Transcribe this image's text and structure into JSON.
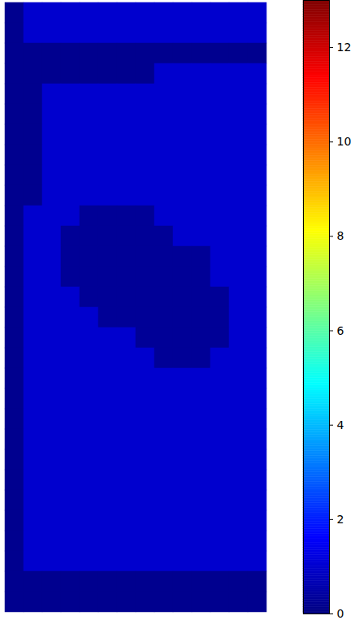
{
  "chart_data": {
    "type": "heatmap",
    "tick_labels": false,
    "color": "jet",
    "cells": [
      [
        0.2,
        1,
        1,
        1,
        1,
        1,
        1,
        1,
        1,
        1,
        1,
        1,
        1,
        1
      ],
      [
        0.2,
        1,
        1,
        1,
        1,
        1,
        1,
        1,
        1,
        1,
        1,
        1,
        1,
        1
      ],
      [
        0.2,
        0.2,
        0.2,
        0.2,
        0.2,
        0.2,
        0.2,
        0.2,
        0.2,
        0.2,
        0.2,
        0.2,
        0.2,
        0.2
      ],
      [
        0.2,
        0.2,
        0.2,
        0.2,
        0.2,
        0.2,
        0.2,
        0.2,
        1,
        1,
        1,
        1,
        1,
        1
      ],
      [
        0.2,
        0.2,
        1,
        1,
        1,
        1,
        1,
        1,
        1,
        1,
        1,
        1,
        1,
        1
      ],
      [
        0.2,
        0.2,
        1,
        1,
        1,
        1,
        1,
        1,
        1,
        1,
        1,
        1,
        1,
        1
      ],
      [
        0.2,
        0.2,
        1,
        1,
        1,
        1,
        1,
        1,
        1,
        1,
        1,
        1,
        1,
        1
      ],
      [
        0.2,
        0.2,
        1,
        1,
        1,
        1,
        1,
        1,
        1,
        1,
        1,
        1,
        1,
        1
      ],
      [
        0.2,
        0.2,
        1,
        1,
        1,
        1,
        1,
        1,
        1,
        1,
        1,
        1,
        1,
        1
      ],
      [
        0.2,
        0.2,
        1,
        1,
        1,
        1,
        1,
        1,
        1,
        1,
        1,
        1,
        1,
        1
      ],
      [
        0.2,
        1,
        1,
        1,
        0.3,
        0.3,
        0.3,
        0.3,
        1,
        1,
        1,
        1,
        1,
        1
      ],
      [
        0.2,
        1,
        1,
        0.3,
        0.3,
        0.3,
        0.3,
        0.3,
        0.3,
        1,
        1,
        1,
        1,
        1
      ],
      [
        0.2,
        1,
        1,
        0.3,
        0.3,
        0.3,
        0.3,
        0.3,
        0.3,
        0.3,
        0.3,
        1,
        1,
        1
      ],
      [
        0.2,
        1,
        1,
        0.3,
        0.3,
        0.3,
        0.3,
        0.3,
        0.3,
        0.3,
        0.3,
        1,
        1,
        1
      ],
      [
        0.2,
        1,
        1,
        1,
        0.3,
        0.3,
        0.3,
        0.3,
        0.3,
        0.3,
        0.3,
        0.3,
        1,
        1
      ],
      [
        0.2,
        1,
        1,
        1,
        1,
        0.3,
        0.3,
        0.3,
        0.3,
        0.3,
        0.3,
        0.3,
        1,
        1
      ],
      [
        0.2,
        1,
        1,
        1,
        1,
        1,
        1,
        0.3,
        0.3,
        0.3,
        0.3,
        0.3,
        1,
        1
      ],
      [
        0.2,
        1,
        1,
        1,
        1,
        1,
        1,
        1,
        0.3,
        0.3,
        0.3,
        1,
        1,
        1
      ],
      [
        0.2,
        1,
        1,
        1,
        1,
        1,
        1,
        1,
        1,
        1,
        1,
        1,
        1,
        1
      ],
      [
        0.2,
        1,
        1,
        1,
        1,
        1,
        1,
        1,
        1,
        1,
        1,
        1,
        1,
        1
      ],
      [
        0.2,
        1,
        1,
        1,
        1,
        1,
        1,
        1,
        1,
        1,
        1,
        1,
        1,
        1
      ],
      [
        0.2,
        1,
        1,
        1,
        1,
        1,
        1,
        1,
        1,
        1,
        1,
        1,
        1,
        1
      ],
      [
        0.2,
        1,
        1,
        1,
        1,
        1,
        1,
        1,
        1,
        1,
        1,
        1,
        1,
        1
      ],
      [
        0.2,
        1,
        1,
        1,
        1,
        1,
        1,
        1,
        1,
        1,
        1,
        1,
        1,
        1
      ],
      [
        0.2,
        1,
        1,
        1,
        1,
        1,
        1,
        1,
        1,
        1,
        1,
        1,
        1,
        1
      ],
      [
        0.2,
        1,
        1,
        1,
        1,
        1,
        1,
        1,
        1,
        1,
        1,
        1,
        1,
        1
      ],
      [
        0.2,
        1,
        1,
        1,
        1,
        1,
        1,
        1,
        1,
        1,
        1,
        1,
        1,
        1
      ],
      [
        0.2,
        1,
        1,
        1,
        1,
        1,
        1,
        1,
        1,
        1,
        1,
        1,
        1,
        1
      ],
      [
        0.2,
        0.2,
        0.2,
        0.2,
        0.2,
        0.2,
        0.2,
        0.2,
        0.2,
        0.2,
        0.2,
        0.2,
        0.2,
        0.2
      ],
      [
        0.2,
        0.2,
        0.2,
        0.2,
        0.2,
        0.2,
        0.2,
        0.2,
        0.2,
        0.2,
        0.2,
        0.2,
        0.2,
        0.2
      ]
    ],
    "colorbar_range": [
      0,
      13
    ],
    "colorbar_ticks": [
      0,
      2,
      4,
      6,
      8,
      10,
      12
    ]
  }
}
